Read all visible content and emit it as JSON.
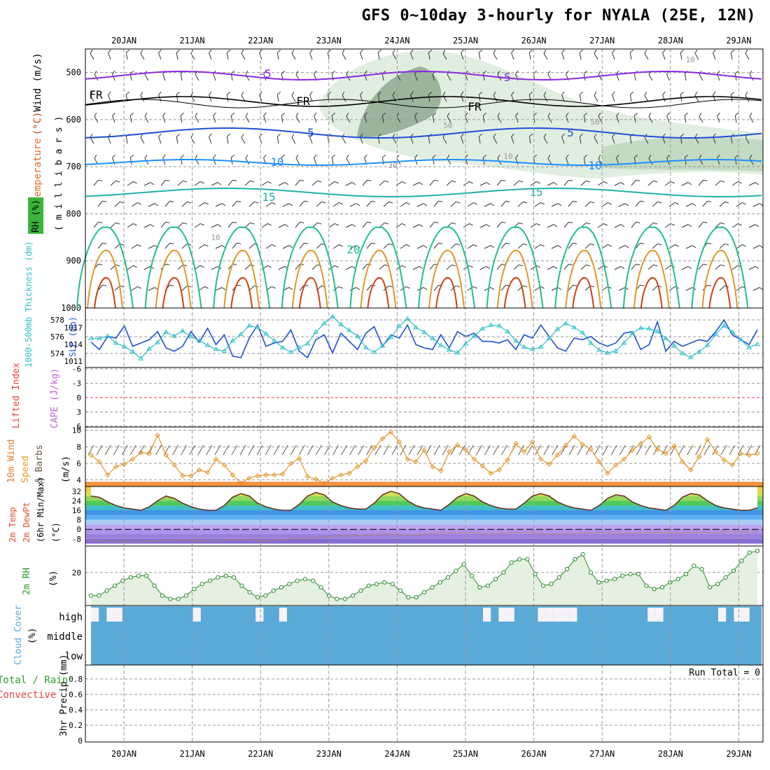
{
  "title": "GFS 0~10day 3-hourly for NYALA (25E, 12N)",
  "colors": {
    "grid": "#999999",
    "frame": "#000000",
    "purple": "#8a2be2",
    "blue": "#1f4fd6",
    "lightblue": "#1e90ff",
    "cyan": "#20b2aa",
    "teal": "#1fbf8f",
    "orange": "#e0962a",
    "red": "#d04010",
    "green": "#2a9d2a",
    "cloud": "#5aaad8",
    "cape": "#bb66cc",
    "lifted": "#e84040"
  },
  "chart_data": [
    {
      "type": "line",
      "panel": "upper-air",
      "x": [
        "20JAN",
        "21JAN",
        "22JAN",
        "23JAN",
        "24JAN",
        "25JAN",
        "26JAN",
        "27JAN",
        "28JAN",
        "29JAN"
      ],
      "y_axis_label": "( m i l l i b a r s )",
      "y_ticks": [
        500,
        600,
        700,
        800,
        900,
        1000
      ],
      "ylim": [
        450,
        1000
      ],
      "labels": {
        "wind": "Wind (m/s)",
        "temperature": "Temperature (°C)",
        "rh": "RH (%)"
      },
      "contour_labels": [
        "-5",
        "-5",
        "FR",
        "FR",
        "FR",
        "5",
        "5",
        "10",
        "10",
        "15",
        "15",
        "20",
        "10",
        "10",
        "10",
        "50",
        "30",
        "50"
      ]
    },
    {
      "type": "line",
      "panel": "thickness-slp",
      "labels": {
        "thickness": "1000-500mb Thickness (dm)",
        "slp": "SLP (mb)"
      },
      "left_ticks": [
        "578",
        "576",
        "574"
      ],
      "right_ticks": [
        "1017",
        "1014",
        "1011"
      ],
      "series": [
        {
          "name": "thickness",
          "values": [
            575.5,
            574.6,
            576.2,
            576.0,
            577.5,
            575.0,
            575.4,
            575.8,
            576.8,
            574.8,
            574.4,
            575.0,
            576.8,
            575.5,
            577.2,
            575.2,
            576.4,
            573.8,
            573.6,
            576.0,
            577.6,
            575.0,
            575.4,
            575.6,
            577.0,
            574.4,
            573.6,
            575.8,
            576.4,
            574.2,
            576.6,
            575.6,
            574.6,
            576.6,
            577.4,
            575.0,
            576.4,
            576.0,
            577.6,
            575.2,
            574.8,
            574.6,
            576.4,
            574.8,
            576.8,
            576.2,
            576.6,
            575.6,
            575.6,
            575.4,
            575.8,
            574.6,
            576.4,
            576.0,
            577.6,
            576.2,
            574.8,
            574.4,
            576.0,
            575.8,
            576.2,
            575.4,
            575.0,
            575.4,
            576.6,
            576.8,
            574.6,
            575.2,
            578.0,
            574.4,
            575.6,
            575.0,
            575.4,
            575.8,
            575.6,
            576.8,
            578.2,
            576.4,
            575.8,
            575.2,
            577.0
          ]
        },
        {
          "name": "slp",
          "values": [
            1015.2,
            1015.2,
            1015.6,
            1014.4,
            1013.8,
            1012.9,
            1011.7,
            1013.4,
            1014.5,
            1016.3,
            1015.6,
            1016.5,
            1015.5,
            1014.8,
            1014.0,
            1013.3,
            1013.0,
            1014.8,
            1015.9,
            1017.4,
            1017.1,
            1016.0,
            1014.8,
            1013.6,
            1012.8,
            1013.6,
            1014.3,
            1016.3,
            1017.8,
            1019.0,
            1017.6,
            1016.6,
            1015.6,
            1013.6,
            1012.8,
            1013.9,
            1015.4,
            1017.3,
            1018.6,
            1017.1,
            1016.3,
            1015.2,
            1014.0,
            1013.2,
            1012.7,
            1014.3,
            1015.6,
            1016.9,
            1017.5,
            1017.4,
            1016.4,
            1014.8,
            1013.7,
            1013.3,
            1013.7,
            1015.2,
            1016.8,
            1017.8,
            1017.1,
            1016.2,
            1014.4,
            1013.2,
            1012.7,
            1013.0,
            1014.4,
            1016.1,
            1017.0,
            1016.9,
            1016.4,
            1015.2,
            1013.9,
            1012.6,
            1011.9,
            1012.9,
            1014.0,
            1015.9,
            1017.4,
            1016.3,
            1015.0,
            1013.6,
            1014.2
          ]
        }
      ]
    },
    {
      "type": "line",
      "panel": "cape-lifted",
      "labels": {
        "lifted": "Lifted Index",
        "cape": "CAPE (J/kg)"
      },
      "y_ticks": [
        "-6",
        "-3",
        "0",
        "3",
        "6"
      ],
      "series": [
        {
          "name": "lifted",
          "values": [
            0,
            0
          ]
        }
      ]
    },
    {
      "type": "line",
      "panel": "wind10m",
      "labels": {
        "wind": "10m Wind",
        "speed": "Speed",
        "barbs": "& Barbs",
        "unit": "(m/s)"
      },
      "y_ticks": [
        4,
        6,
        8,
        10
      ],
      "ylim": [
        3.2,
        10.4
      ],
      "series": [
        {
          "name": "speed",
          "values": [
            7.0,
            6.2,
            4.6,
            5.6,
            5.9,
            6.5,
            7.3,
            7.2,
            9.4,
            7.0,
            5.8,
            4.5,
            4.5,
            5.2,
            4.9,
            6.5,
            5.8,
            4.6,
            3.6,
            4.2,
            4.5,
            4.6,
            4.6,
            4.7,
            6.0,
            6.6,
            4.4,
            4.1,
            3.6,
            4.2,
            4.6,
            4.8,
            5.6,
            6.3,
            7.9,
            9.0,
            9.8,
            8.6,
            6.5,
            6.2,
            7.6,
            5.6,
            5.1,
            7.4,
            8.2,
            7.6,
            6.5,
            5.7,
            4.8,
            5.2,
            6.4,
            8.4,
            7.4,
            8.6,
            6.5,
            5.9,
            7.0,
            8.2,
            9.3,
            8.3,
            7.7,
            6.2,
            4.8,
            5.8,
            6.5,
            7.6,
            8.4,
            9.2,
            7.7,
            7.2,
            8.1,
            6.2,
            5.2,
            6.8,
            8.9,
            7.4,
            6.4,
            5.8,
            7.2,
            7.0,
            7.2
          ]
        }
      ]
    },
    {
      "type": "area",
      "panel": "temp2m",
      "labels": {
        "temp": "2m Temp",
        "dewpt": "2m DewPt",
        "minmax": "(6hr Min/Max)",
        "unit": "(°C)"
      },
      "y_ticks": [
        -8,
        0,
        8,
        16,
        24,
        32
      ],
      "ylim": [
        -14,
        36
      ],
      "series": [
        {
          "name": "temp",
          "values": [
            28,
            27,
            23,
            20,
            18,
            17,
            16,
            19,
            24,
            28,
            26,
            22,
            19,
            17,
            16,
            16,
            20,
            27,
            30,
            28,
            22,
            19,
            17,
            16,
            16,
            21,
            28,
            31,
            29,
            23,
            20,
            18,
            17,
            17,
            22,
            29,
            32,
            30,
            24,
            20,
            18,
            17,
            16,
            21,
            27,
            30,
            28,
            23,
            20,
            18,
            17,
            17,
            22,
            28,
            30,
            28,
            23,
            20,
            18,
            17,
            16,
            20,
            26,
            29,
            28,
            23,
            20,
            18,
            17,
            16,
            20,
            27,
            30,
            29,
            24,
            20,
            18,
            17,
            16,
            16,
            18
          ]
        },
        {
          "name": "dewpt",
          "values": [
            -9,
            -9.5,
            -10,
            -10,
            -10.5,
            -10.5,
            -10,
            -10,
            -9.5,
            -9.5,
            -9,
            -9,
            -9,
            -9.5,
            -10,
            -9.5,
            -9,
            -8.5,
            -8.5,
            -9,
            -9.5,
            -9.5,
            -9,
            -8.5,
            -8,
            -7.5,
            -7.5,
            -7,
            -6.5,
            -6,
            -5.5,
            -5.5,
            -5,
            -5,
            -4.5,
            -4,
            -4,
            -4.5,
            -5,
            -5,
            -4,
            -3.5,
            -3,
            -3,
            -2.5,
            -2.5,
            -3,
            -3.5,
            -4,
            -3.5,
            -3,
            -2.5,
            -2.5,
            -3,
            -3.5,
            -4,
            -4,
            -3.5,
            -3.5,
            -3,
            -3,
            -2.5,
            -3,
            -3.5,
            -3.5,
            -3,
            -3,
            -2.5,
            -2.5,
            -2.5,
            -3,
            -3,
            -2.5,
            -2.5,
            -2.5,
            -2.5,
            -2,
            -2,
            -2,
            -2.5,
            -2
          ]
        }
      ]
    },
    {
      "type": "area",
      "panel": "rh2m",
      "labels": {
        "rh": "2m RH",
        "unit": "(%)"
      },
      "y_ticks": [
        20
      ],
      "ylim": [
        0,
        36
      ],
      "series": [
        {
          "name": "rh",
          "values": [
            6,
            6,
            9,
            12,
            15,
            17,
            18,
            18,
            12,
            6,
            4,
            4,
            6,
            10,
            13,
            15,
            17,
            18,
            17,
            12,
            8,
            5,
            6,
            9,
            11,
            13,
            15,
            16,
            15,
            11,
            6,
            4,
            4,
            6,
            9,
            12,
            13,
            14,
            13,
            9,
            5,
            5,
            8,
            11,
            14,
            17,
            21,
            25,
            18,
            11,
            12,
            16,
            20,
            26,
            28,
            28,
            19,
            12,
            13,
            17,
            22,
            28,
            31,
            20,
            14,
            15,
            16,
            18,
            19,
            19,
            12,
            10,
            11,
            14,
            16,
            19,
            24,
            22,
            11,
            13,
            17,
            21,
            27,
            32,
            33
          ]
        }
      ]
    },
    {
      "type": "bar",
      "panel": "cloud",
      "labels": {
        "cloud": "Cloud Cover",
        "unit": "(%)",
        "high": "high",
        "middle": "middle",
        "low": "low"
      },
      "high_gaps": [
        1,
        0,
        1,
        1,
        0,
        0,
        0,
        0,
        0,
        0,
        0,
        0,
        0,
        1,
        0,
        0,
        0,
        0,
        0,
        0,
        0,
        1,
        0,
        0,
        1,
        0,
        0,
        0,
        0,
        0,
        0,
        0,
        0,
        0,
        0,
        0,
        0,
        0,
        0,
        0,
        0,
        0,
        0,
        0,
        0,
        0,
        0,
        0,
        0,
        0,
        1,
        0,
        1,
        1,
        0,
        0,
        0,
        1,
        1,
        1,
        1,
        1,
        0,
        0,
        0,
        0,
        0,
        0,
        0,
        0,
        0,
        1,
        1,
        0,
        0,
        0,
        0,
        0,
        0,
        0,
        1,
        0,
        1,
        1,
        0
      ]
    },
    {
      "type": "line",
      "panel": "precip",
      "labels": {
        "total": "Total / Rain",
        "conv": "Convective",
        "precip": "3hr Precip (mm)",
        "run_total": "Run Total = 0"
      },
      "y_ticks": [
        "0",
        "0.2",
        "0.4",
        "0.6",
        "0.8"
      ]
    }
  ]
}
